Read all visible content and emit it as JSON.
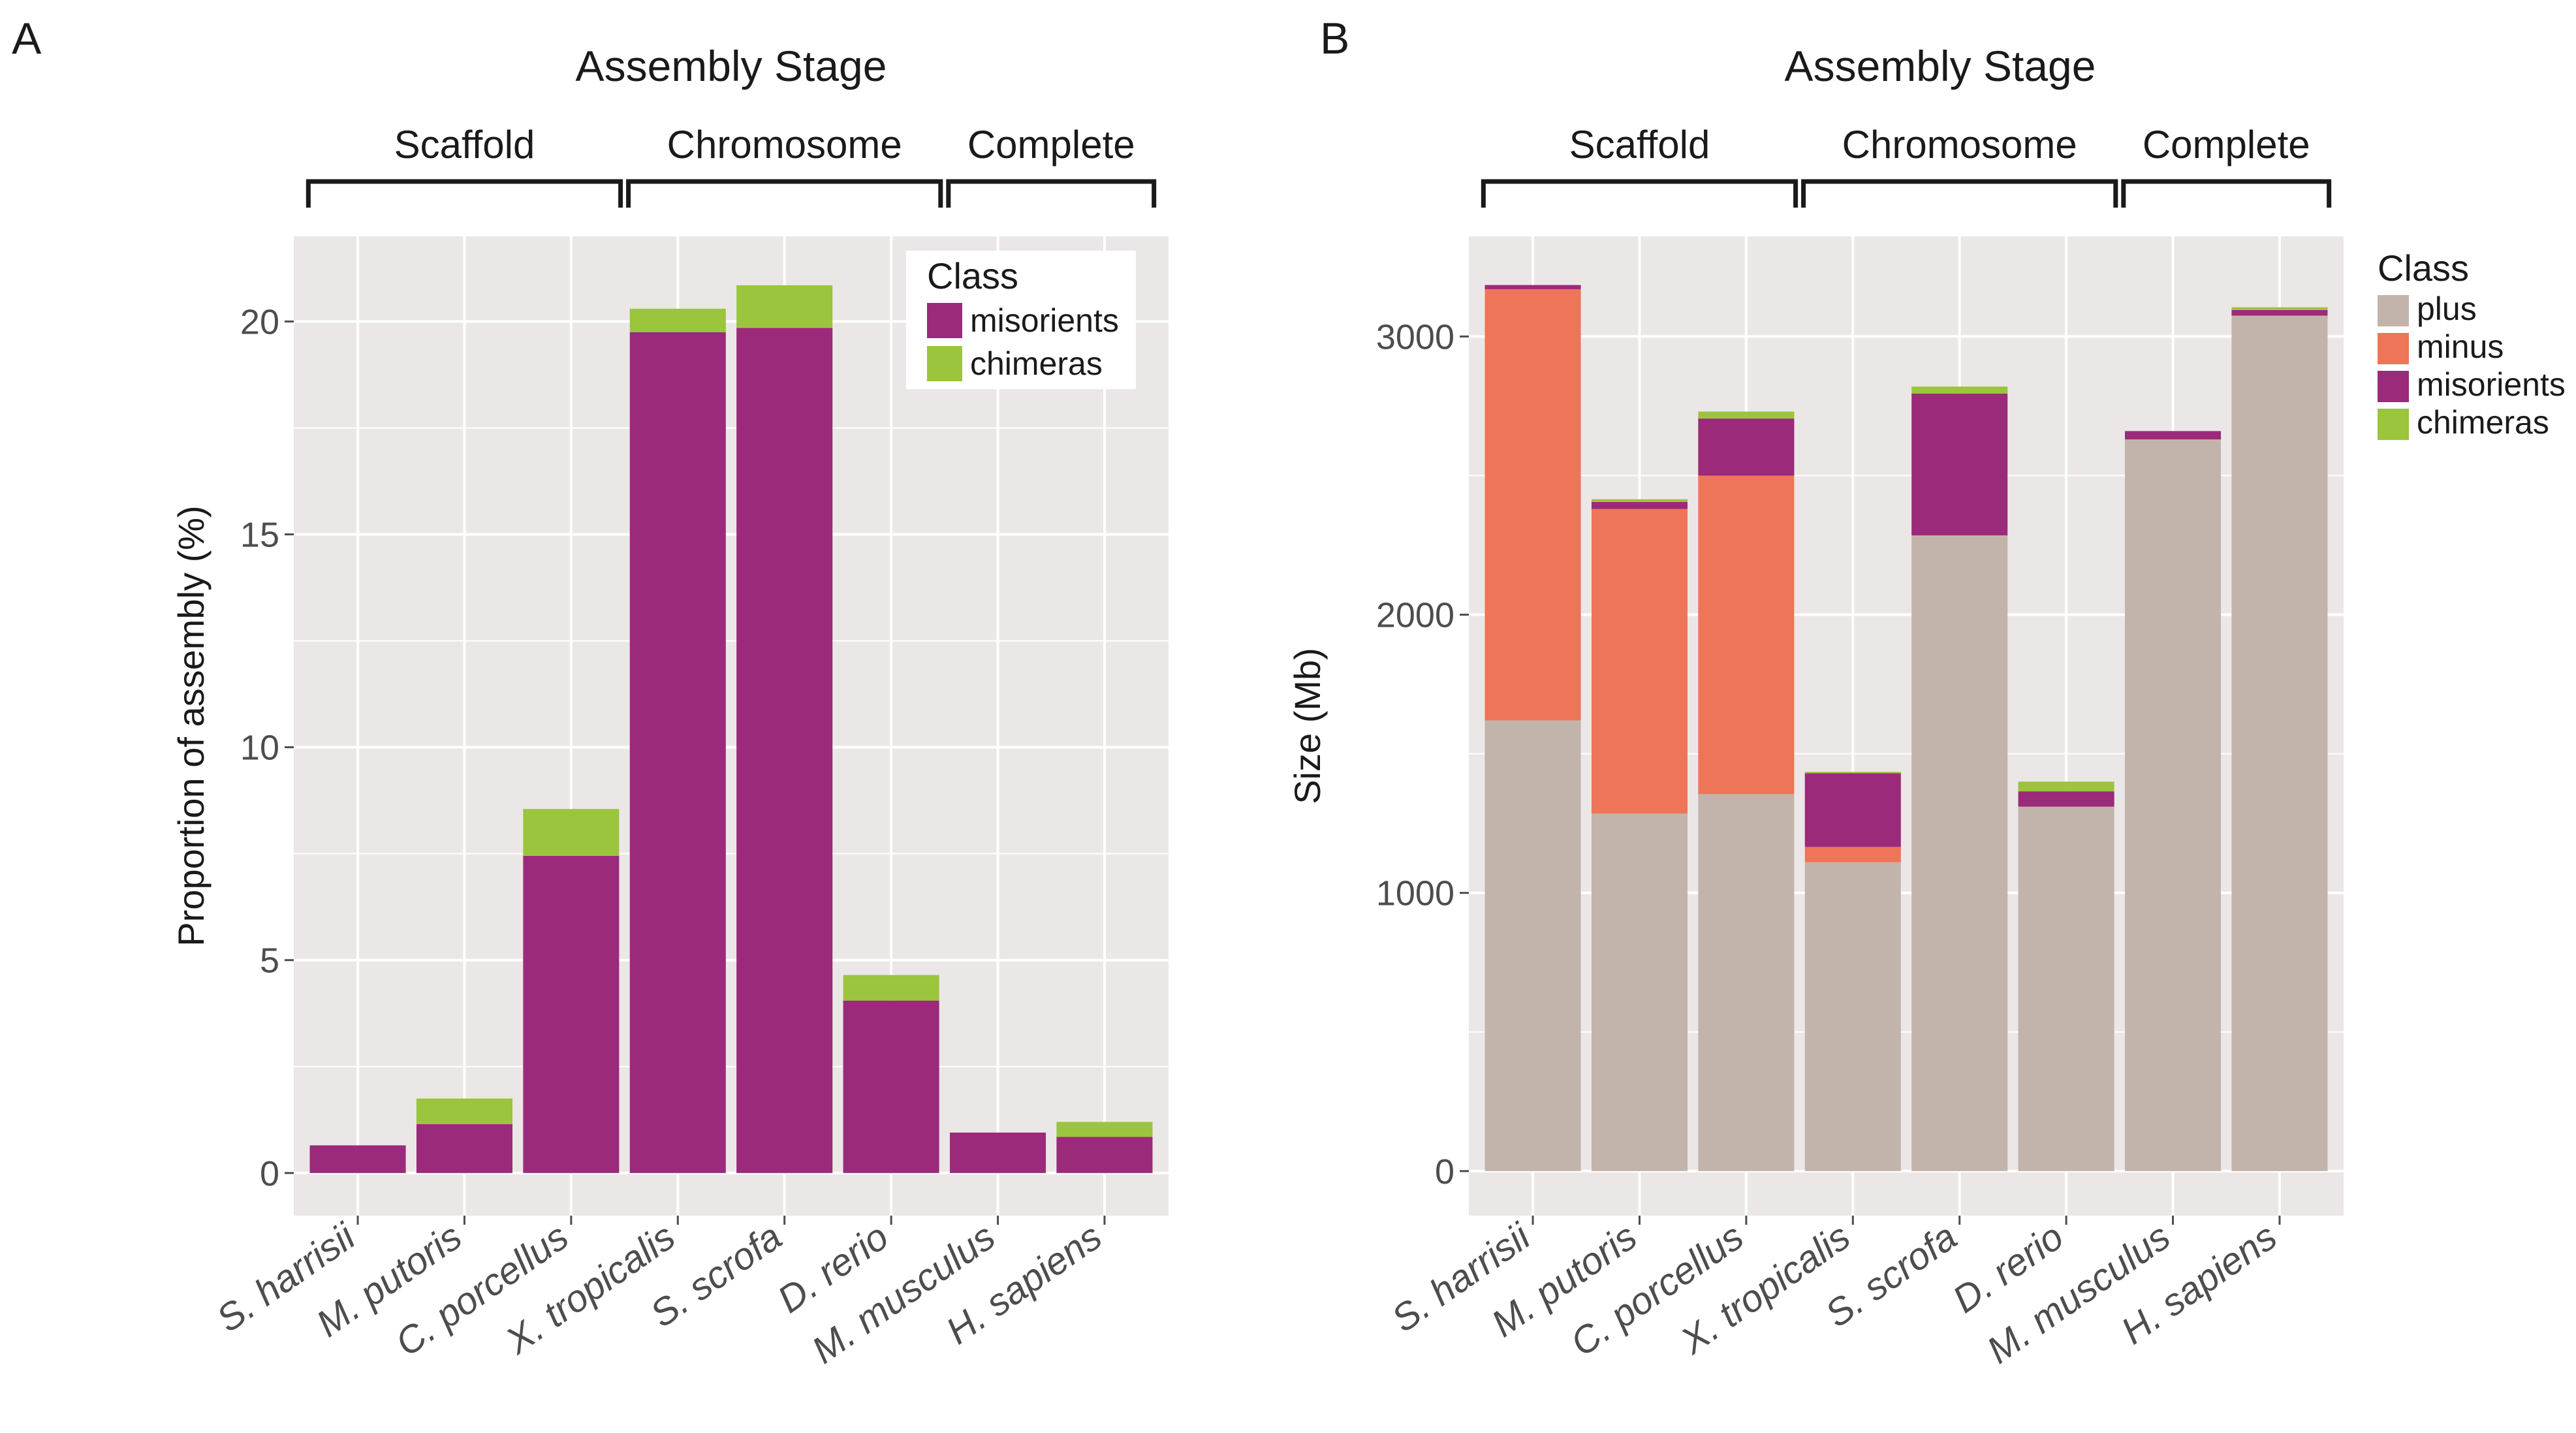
{
  "figure": {
    "panels": [
      "A",
      "B"
    ]
  },
  "chart_data": [
    {
      "panel": "A",
      "type": "bar",
      "stacked": true,
      "title": "Assembly Stage",
      "stage_groups": [
        {
          "label": "Scaffold",
          "categories": [
            "S. harrisii",
            "M. putoris",
            "C. porcellus"
          ]
        },
        {
          "label": "Chromosome",
          "categories": [
            "X. tropicalis",
            "S. scrofa",
            "D. rerio"
          ]
        },
        {
          "label": "Complete",
          "categories": [
            "M. musculus",
            "H. sapiens"
          ]
        }
      ],
      "categories": [
        "S. harrisii",
        "M. putoris",
        "C. porcellus",
        "X. tropicalis",
        "S. scrofa",
        "D. rerio",
        "M. musculus",
        "H. sapiens"
      ],
      "series": [
        {
          "name": "misorients",
          "color": "#9b2a7a",
          "values": [
            0.65,
            1.15,
            7.45,
            19.75,
            19.85,
            4.05,
            0.95,
            0.85
          ]
        },
        {
          "name": "chimeras",
          "color": "#9ac53c",
          "values": [
            0.0,
            0.6,
            1.1,
            0.55,
            1.0,
            0.6,
            0.0,
            0.35
          ]
        }
      ],
      "xlabel": "",
      "ylabel": "Proportion of assembly (%)",
      "ylim": [
        -1.0,
        22.0
      ],
      "yticks": [
        0,
        5,
        10,
        15,
        20
      ],
      "legend": {
        "title": "Class",
        "position": "top-right",
        "entries": [
          "misorients",
          "chimeras"
        ]
      },
      "grid": true
    },
    {
      "panel": "B",
      "type": "bar",
      "stacked": true,
      "title": "Assembly Stage",
      "stage_groups": [
        {
          "label": "Scaffold",
          "categories": [
            "S. harrisii",
            "M. putoris",
            "C. porcellus"
          ]
        },
        {
          "label": "Chromosome",
          "categories": [
            "X. tropicalis",
            "S. scrofa",
            "D. rerio"
          ]
        },
        {
          "label": "Complete",
          "categories": [
            "M. musculus",
            "H. sapiens"
          ]
        }
      ],
      "categories": [
        "S. harrisii",
        "M. putoris",
        "C. porcellus",
        "X. tropicalis",
        "S. scrofa",
        "D. rerio",
        "M. musculus",
        "H. sapiens"
      ],
      "series": [
        {
          "name": "plus",
          "color": "#c3b4ab",
          "values": [
            1620,
            1285,
            1355,
            1110,
            2285,
            1310,
            2630,
            3075
          ]
        },
        {
          "name": "minus",
          "color": "#ef7558",
          "values": [
            1550,
            1095,
            1145,
            55,
            0,
            0,
            0,
            0
          ]
        },
        {
          "name": "misorients",
          "color": "#9b2a7a",
          "values": [
            15,
            25,
            205,
            265,
            510,
            55,
            30,
            20
          ]
        },
        {
          "name": "chimeras",
          "color": "#9ac53c",
          "values": [
            0,
            10,
            25,
            5,
            25,
            35,
            0,
            10
          ]
        }
      ],
      "xlabel": "",
      "ylabel": "Size (Mb)",
      "ylim": [
        -160,
        3360
      ],
      "yticks": [
        0,
        1000,
        2000,
        3000
      ],
      "legend": {
        "title": "Class",
        "position": "right",
        "entries": [
          "plus",
          "minus",
          "misorients",
          "chimeras"
        ]
      },
      "grid": true
    }
  ]
}
